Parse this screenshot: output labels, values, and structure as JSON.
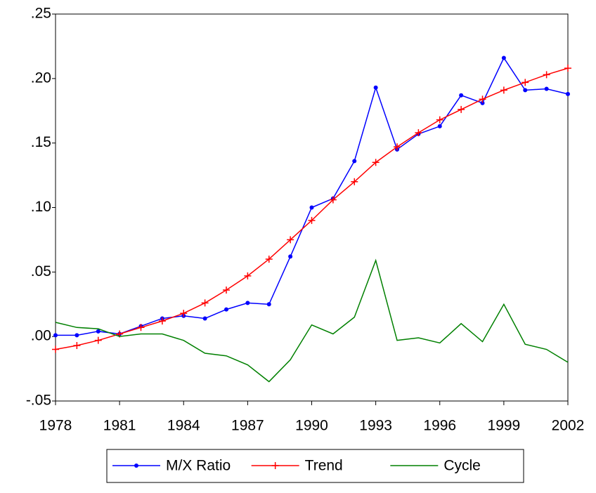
{
  "chart_data": {
    "type": "line",
    "x": [
      1978,
      1979,
      1980,
      1981,
      1982,
      1983,
      1984,
      1985,
      1986,
      1987,
      1988,
      1989,
      1990,
      1991,
      1992,
      1993,
      1994,
      1995,
      1996,
      1997,
      1998,
      1999,
      2000,
      2001,
      2002
    ],
    "series": [
      {
        "name": "M/X Ratio",
        "color": "#0000ff",
        "marker": "circle",
        "values": [
          0.001,
          0.001,
          0.004,
          0.002,
          0.008,
          0.014,
          0.016,
          0.014,
          0.021,
          0.026,
          0.025,
          0.062,
          0.1,
          0.107,
          0.136,
          0.193,
          0.145,
          0.157,
          0.163,
          0.187,
          0.181,
          0.216,
          0.191,
          0.192,
          0.188
        ]
      },
      {
        "name": "Trend",
        "color": "#ff0000",
        "marker": "plus",
        "values": [
          -0.01,
          -0.007,
          -0.003,
          0.002,
          0.007,
          0.012,
          0.018,
          0.026,
          0.036,
          0.047,
          0.06,
          0.075,
          0.09,
          0.106,
          0.12,
          0.135,
          0.147,
          0.158,
          0.168,
          0.176,
          0.184,
          0.191,
          0.197,
          0.203,
          0.208
        ]
      },
      {
        "name": "Cycle",
        "color": "#008000",
        "values": [
          0.011,
          0.007,
          0.006,
          0.0,
          0.002,
          0.002,
          -0.003,
          -0.013,
          -0.015,
          -0.022,
          -0.035,
          -0.018,
          0.009,
          0.002,
          0.015,
          0.059,
          -0.003,
          -0.001,
          -0.005,
          0.01,
          -0.004,
          0.025,
          -0.006,
          -0.01,
          -0.02
        ]
      }
    ],
    "xlim": [
      1978,
      2002
    ],
    "xticks": [
      1978,
      1981,
      1984,
      1987,
      1990,
      1993,
      1996,
      1999,
      2002
    ],
    "ylim": [
      -0.05,
      0.25
    ],
    "yticks": [
      {
        "value": -0.05,
        "label": "-.05"
      },
      {
        "value": 0,
        "label": ".00"
      },
      {
        "value": 0.05,
        "label": ".05"
      },
      {
        "value": 0.1,
        "label": ".10"
      },
      {
        "value": 0.15,
        "label": ".15"
      },
      {
        "value": 0.2,
        "label": ".20"
      },
      {
        "value": 0.25,
        "label": ".25"
      }
    ],
    "legend": "bottom"
  }
}
